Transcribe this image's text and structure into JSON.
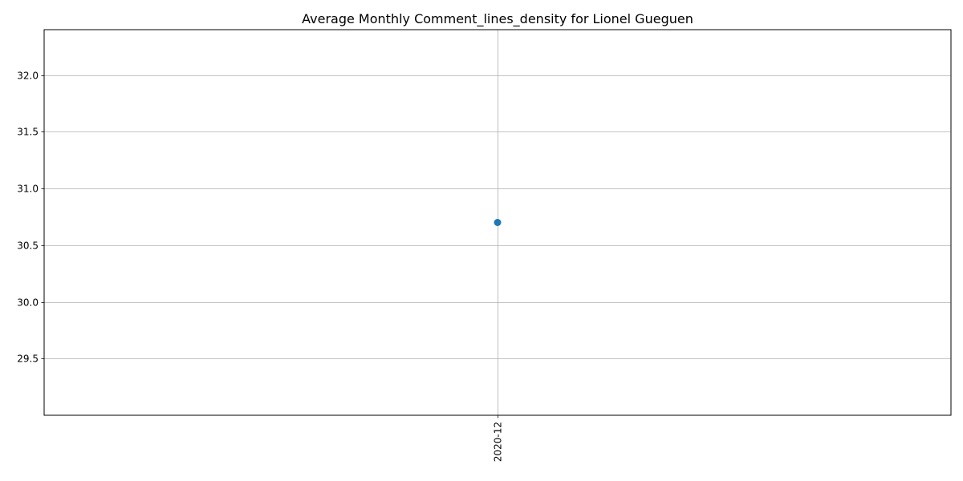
{
  "chart_data": {
    "type": "line",
    "title": "Average Monthly Comment_lines_density for Lionel Gueguen",
    "xlabel": "",
    "ylabel": "",
    "categories": [
      "2020-12"
    ],
    "series": [
      {
        "values": [
          30.7
        ],
        "color": "#1f77b4"
      }
    ],
    "ylim": [
      29.0,
      32.4
    ],
    "yticks": [
      29.5,
      30.0,
      30.5,
      31.0,
      31.5,
      32.0
    ],
    "ytick_labels": [
      "29.5",
      "30.0",
      "30.5",
      "31.0",
      "31.5",
      "32.0"
    ],
    "grid": true,
    "x_tick_rotation": "vertical"
  }
}
